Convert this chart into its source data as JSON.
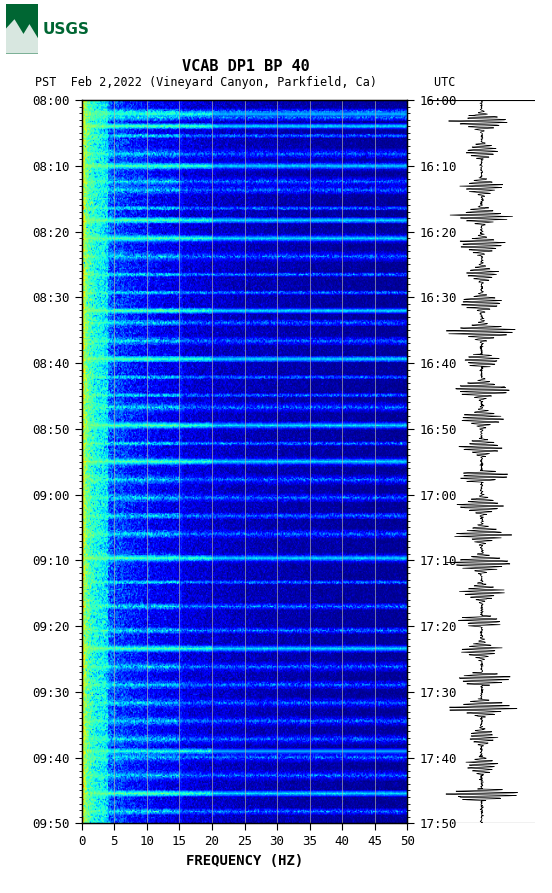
{
  "title_line1": "VCAB DP1 BP 40",
  "title_line2": "PST  Feb 2,2022 (Vineyard Canyon, Parkfield, Ca)        UTC",
  "xlabel": "FREQUENCY (HZ)",
  "freq_min": 0,
  "freq_max": 50,
  "freq_ticks": [
    0,
    5,
    10,
    15,
    20,
    25,
    30,
    35,
    40,
    45,
    50
  ],
  "time_labels_left": [
    "08:00",
    "08:10",
    "08:20",
    "08:30",
    "08:40",
    "08:50",
    "09:00",
    "09:10",
    "09:20",
    "09:30",
    "09:40",
    "09:50"
  ],
  "time_labels_right": [
    "16:00",
    "16:10",
    "16:20",
    "16:30",
    "16:40",
    "16:50",
    "17:00",
    "17:10",
    "17:20",
    "17:30",
    "17:40",
    "17:50"
  ],
  "n_time_steps": 600,
  "n_freq_steps": 500,
  "colormap": "jet",
  "vline_positions": [
    5,
    10,
    15,
    20,
    25,
    30,
    35,
    40,
    45
  ],
  "logo_color": "#006600",
  "event_rows": [
    10,
    15,
    22,
    30,
    45,
    55,
    68,
    75,
    90,
    100,
    115,
    130,
    145,
    160,
    175,
    185,
    200,
    215,
    230,
    245,
    255,
    270,
    285,
    300,
    315,
    330,
    345,
    360,
    380,
    400,
    420,
    440,
    455,
    470,
    485,
    500,
    515,
    530,
    545,
    560,
    575,
    590
  ],
  "waveform_events": [
    0.03,
    0.07,
    0.12,
    0.16,
    0.2,
    0.24,
    0.28,
    0.32,
    0.36,
    0.4,
    0.44,
    0.48,
    0.52,
    0.56,
    0.6,
    0.64,
    0.68,
    0.72,
    0.76,
    0.8,
    0.84,
    0.88,
    0.92,
    0.96
  ]
}
